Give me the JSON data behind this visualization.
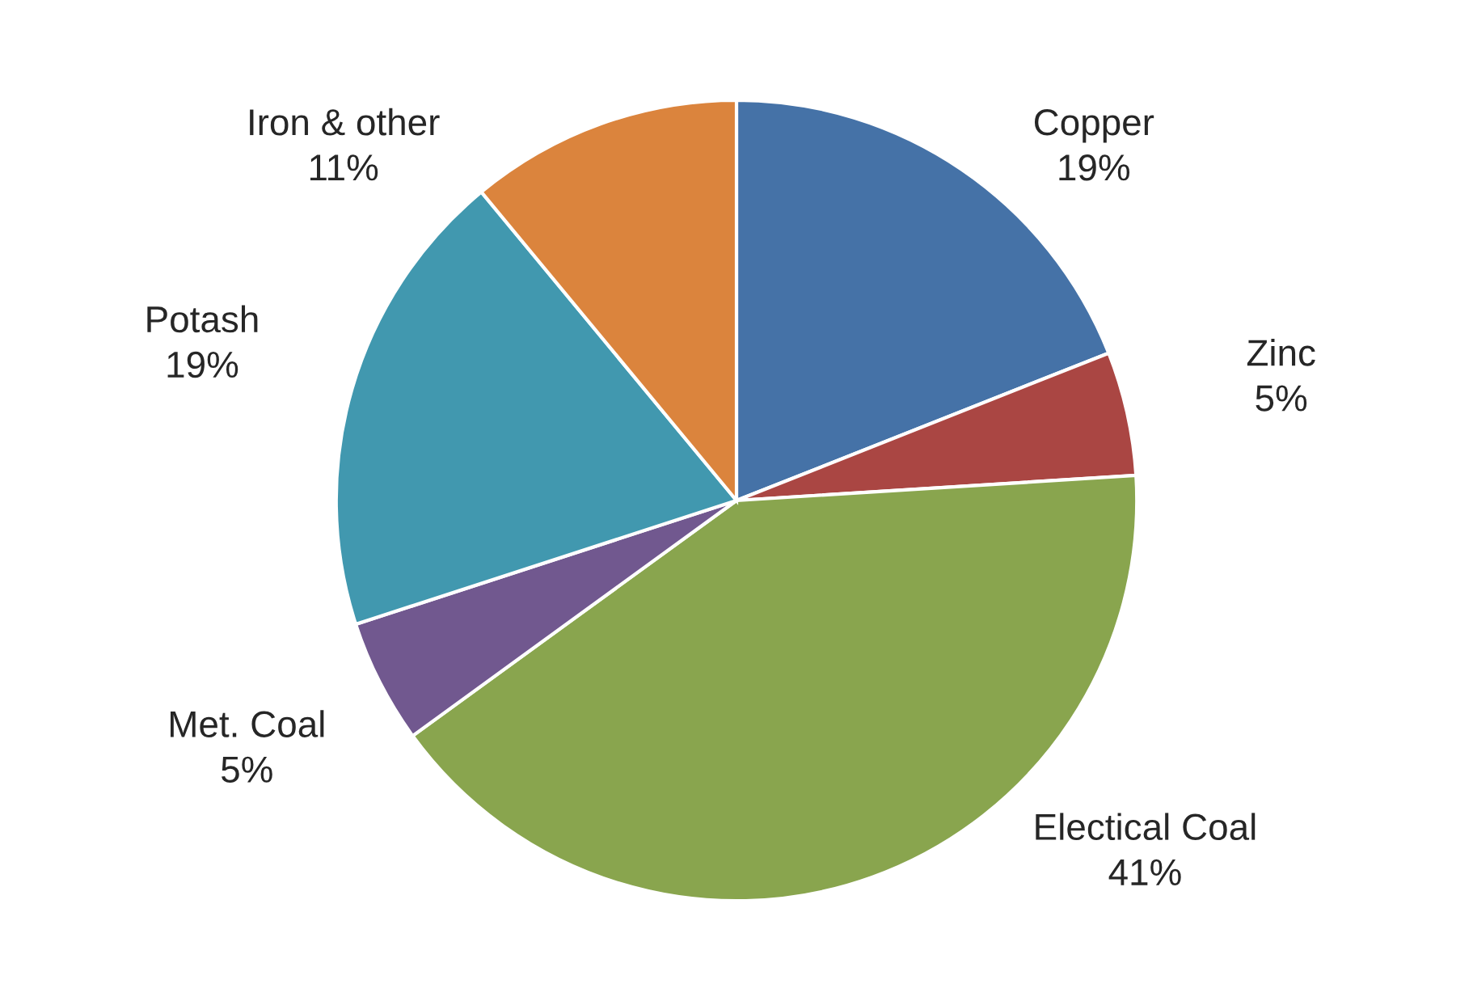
{
  "chart_data": {
    "type": "pie",
    "categories": [
      "Copper",
      "Zinc",
      "Electical Coal",
      "Met. Coal",
      "Potash",
      "Iron & other"
    ],
    "values": [
      19,
      5,
      41,
      5,
      19,
      11
    ],
    "value_labels": [
      "19%",
      "5%",
      "41%",
      "5%",
      "19%",
      "11%"
    ],
    "colors": [
      "#4572a7",
      "#aa4643",
      "#89a54e",
      "#71588f",
      "#4198af",
      "#db843d"
    ]
  }
}
